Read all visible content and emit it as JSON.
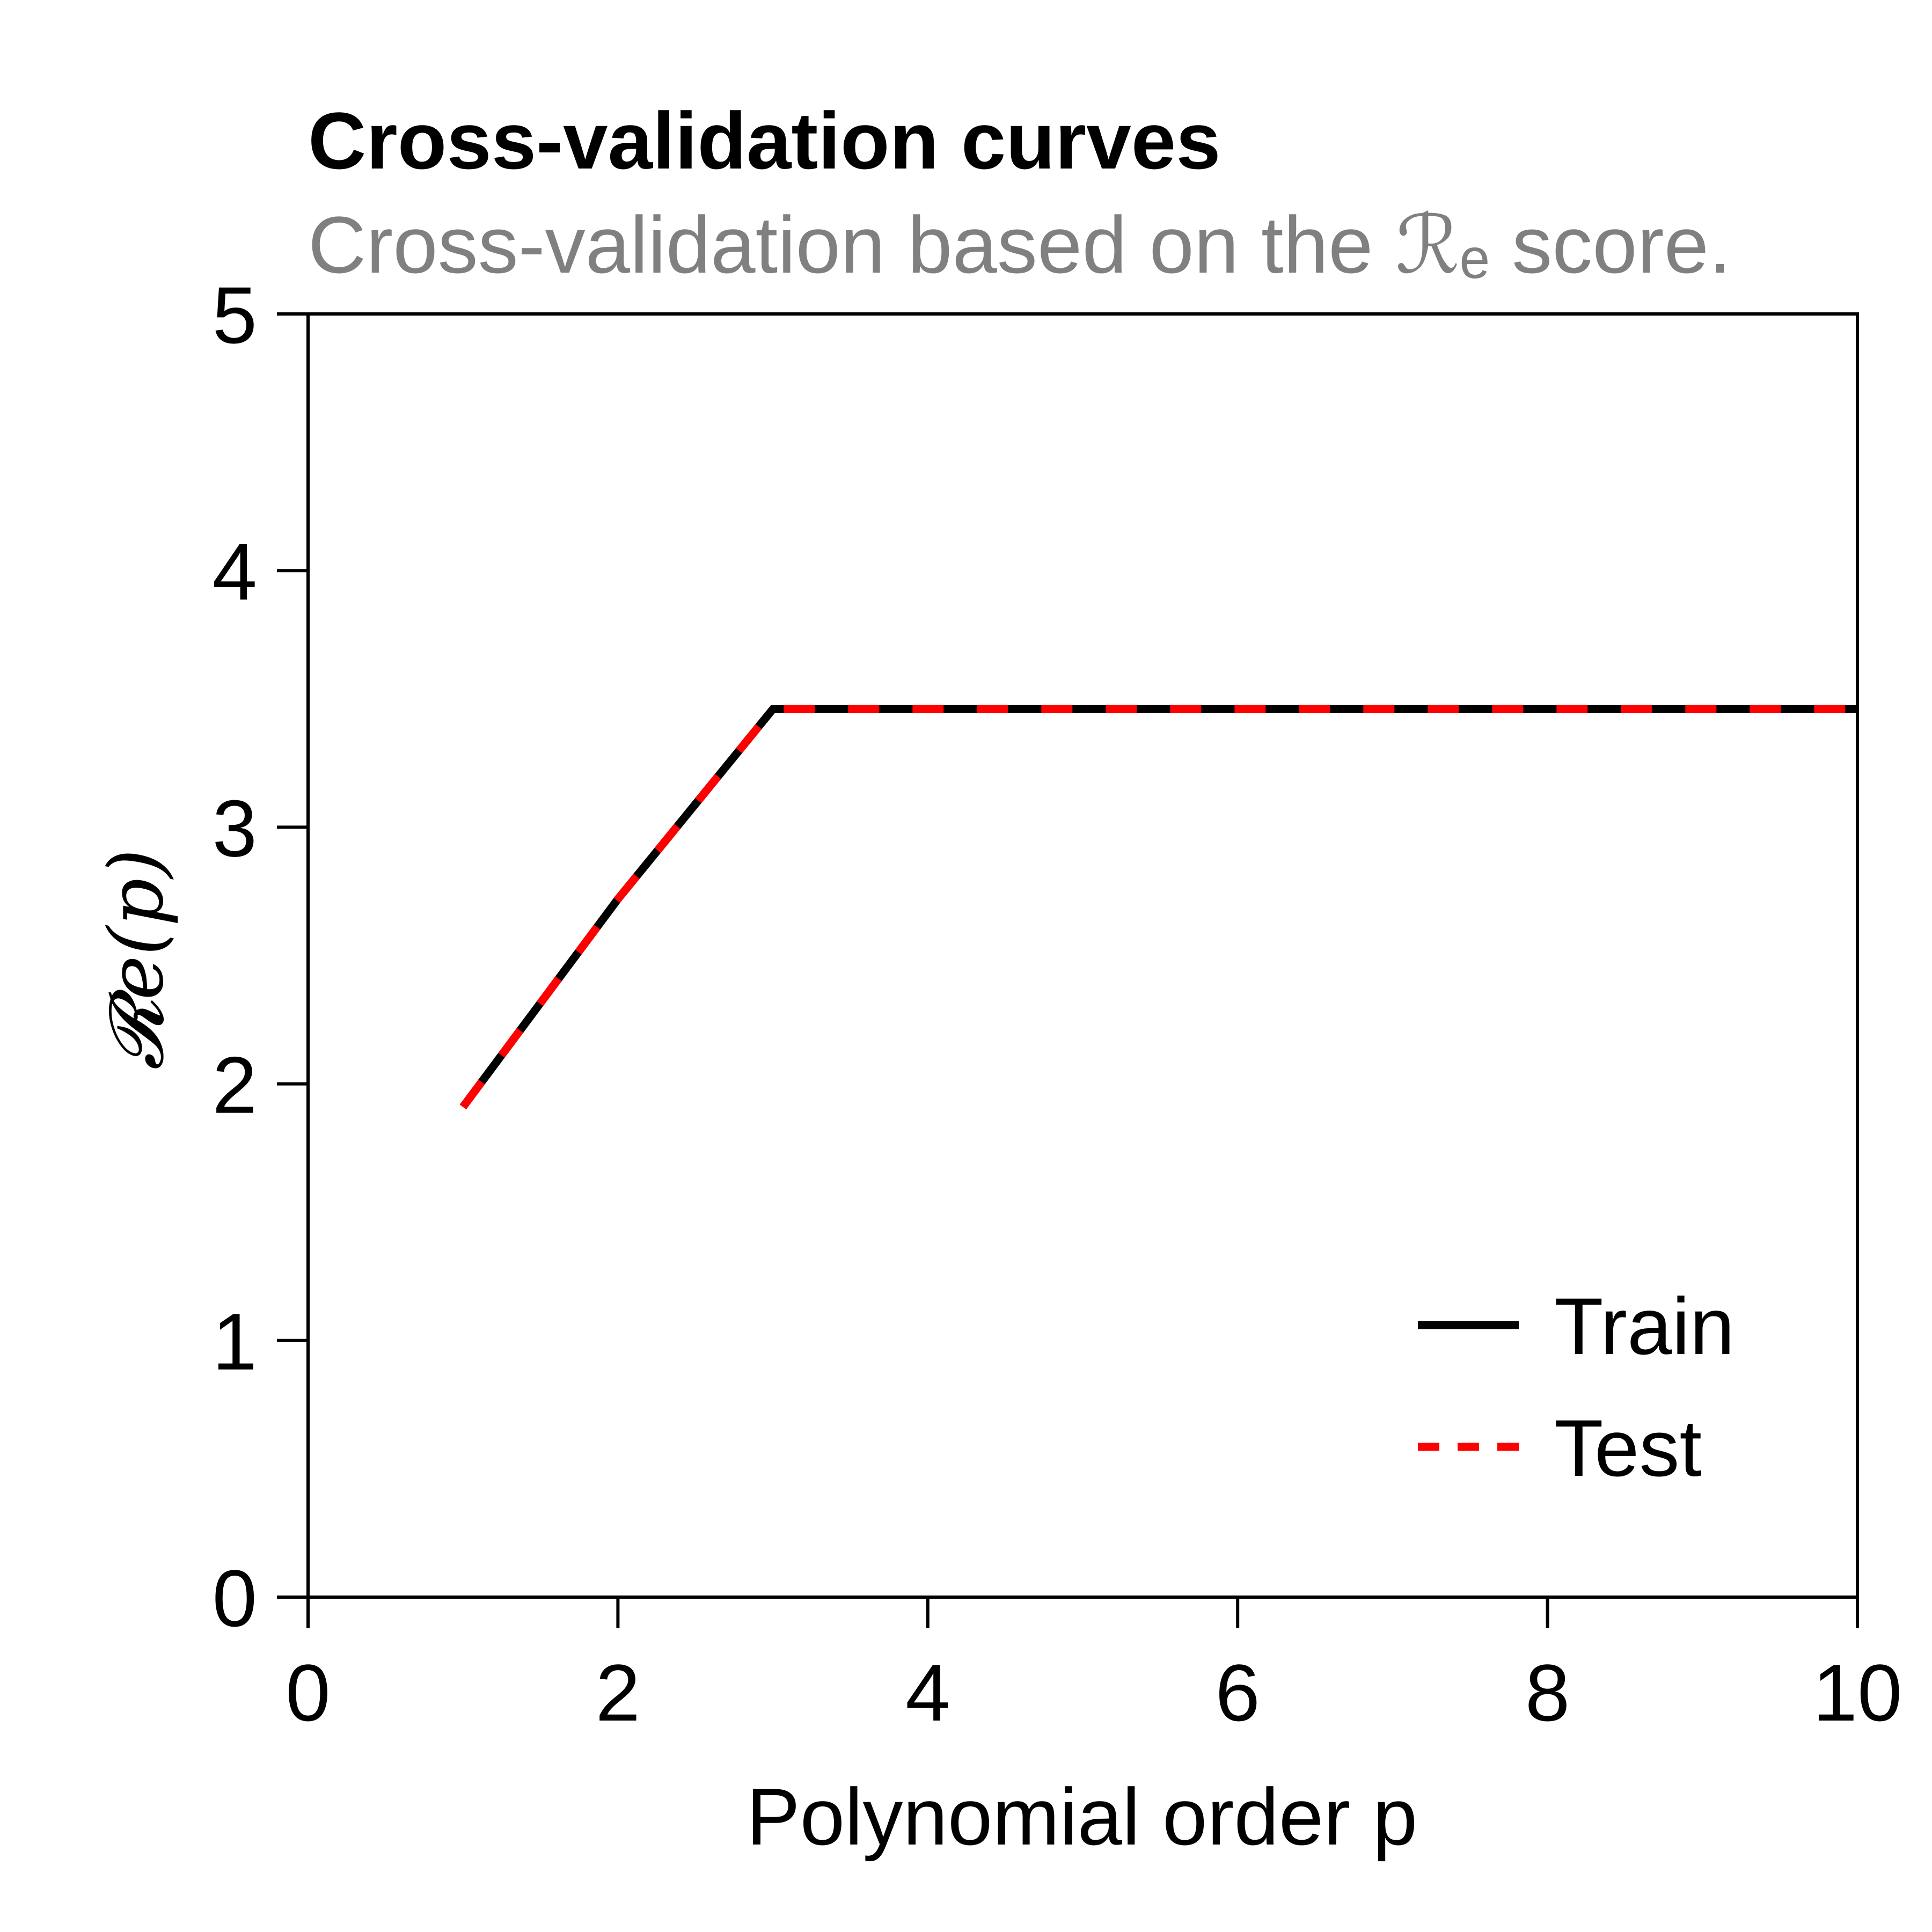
{
  "chart_data": {
    "type": "line",
    "title": "Cross-validation curves",
    "subtitle": "Cross-validation based on the ℛₑ score.",
    "xlabel": "Polynomial order p",
    "ylabel": "𝓡e(p)",
    "xlim": [
      0,
      10
    ],
    "ylim": [
      0,
      5
    ],
    "x_ticks": [
      "0",
      "2",
      "4",
      "6",
      "8",
      "10"
    ],
    "y_ticks": [
      "0",
      "1",
      "2",
      "3",
      "4",
      "5"
    ],
    "grid": false,
    "legend_position": "lower-right",
    "series": [
      {
        "name": "Train",
        "color": "#000000",
        "style": "solid",
        "x": [
          1,
          2,
          3,
          4,
          5,
          6,
          7,
          8,
          9,
          10
        ],
        "y": [
          1.91,
          2.72,
          3.46,
          3.46,
          3.46,
          3.46,
          3.46,
          3.46,
          3.46,
          3.46
        ]
      },
      {
        "name": "Test",
        "color": "#ff0000",
        "style": "dashed",
        "x": [
          1,
          2,
          3,
          4,
          5,
          6,
          7,
          8,
          9,
          10
        ],
        "y": [
          1.91,
          2.72,
          3.46,
          3.46,
          3.46,
          3.46,
          3.46,
          3.46,
          3.46,
          3.46
        ]
      }
    ]
  }
}
